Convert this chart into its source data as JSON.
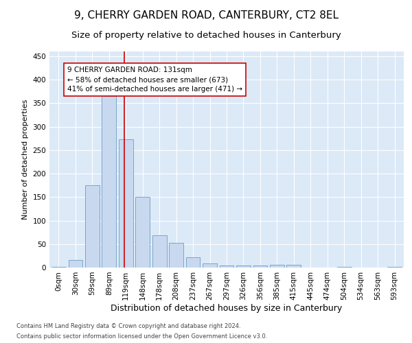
{
  "title": "9, CHERRY GARDEN ROAD, CANTERBURY, CT2 8EL",
  "subtitle": "Size of property relative to detached houses in Canterbury",
  "xlabel": "Distribution of detached houses by size in Canterbury",
  "ylabel": "Number of detached properties",
  "footnote1": "Contains HM Land Registry data © Crown copyright and database right 2024.",
  "footnote2": "Contains public sector information licensed under the Open Government Licence v3.0.",
  "categories": [
    "0sqm",
    "30sqm",
    "59sqm",
    "89sqm",
    "119sqm",
    "148sqm",
    "178sqm",
    "208sqm",
    "237sqm",
    "267sqm",
    "297sqm",
    "326sqm",
    "356sqm",
    "385sqm",
    "415sqm",
    "445sqm",
    "474sqm",
    "504sqm",
    "534sqm",
    "563sqm",
    "593sqm"
  ],
  "values": [
    2,
    16,
    175,
    365,
    273,
    151,
    69,
    53,
    22,
    9,
    5,
    5,
    5,
    6,
    6,
    0,
    0,
    2,
    0,
    0,
    2
  ],
  "bar_color": "#c8d9ef",
  "bar_edge_color": "#6a9cc8",
  "highlight_color": "#cc0000",
  "annotation_text": "9 CHERRY GARDEN ROAD: 131sqm\n← 58% of detached houses are smaller (673)\n41% of semi-detached houses are larger (471) →",
  "annotation_box_color": "#ffffff",
  "annotation_box_edge": "#cc0000",
  "ylim": [
    0,
    460
  ],
  "yticks": [
    0,
    50,
    100,
    150,
    200,
    250,
    300,
    350,
    400,
    450
  ],
  "bg_color": "#dce9f7",
  "plot_bg_color": "#dce9f7",
  "title_fontsize": 11,
  "subtitle_fontsize": 9.5,
  "xlabel_fontsize": 9,
  "ylabel_fontsize": 8,
  "tick_fontsize": 7.5,
  "annotation_fontsize": 7.5,
  "footnote_fontsize": 6
}
